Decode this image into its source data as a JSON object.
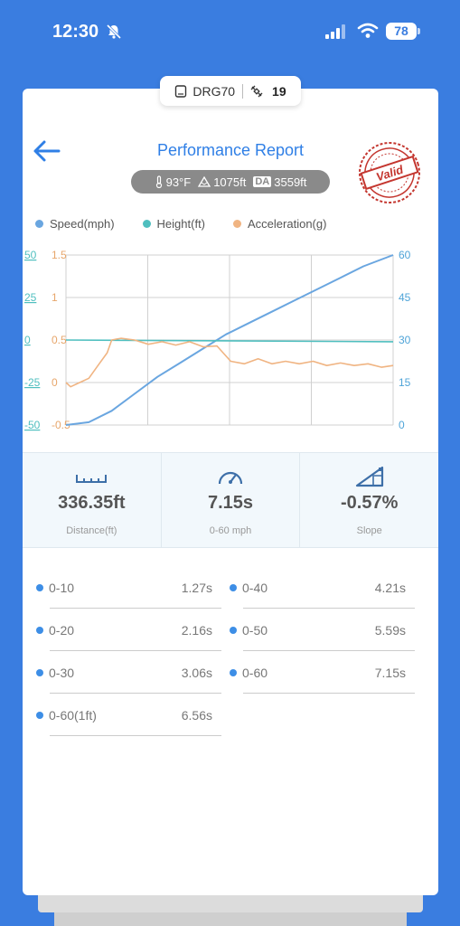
{
  "status_bar": {
    "time": "12:30",
    "battery": "78"
  },
  "device": {
    "name": "DRG70",
    "satellites": "19"
  },
  "report": {
    "title": "Performance Report",
    "temperature": "93°F",
    "altitude": "1075ft",
    "da_label": "DA",
    "density_altitude": "3559ft",
    "stamp_text": "Valid"
  },
  "legend": {
    "speed": "Speed(mph)",
    "height": "Height(ft)",
    "acceleration": "Acceleration(g)"
  },
  "chart_data": {
    "type": "line",
    "series": [
      {
        "name": "Speed(mph)",
        "color": "#6aa6e0",
        "axis": "right",
        "ylim": [
          0,
          60
        ],
        "x": [
          0,
          0.5,
          1.0,
          1.5,
          2.0,
          2.5,
          3.0,
          3.5,
          4.0,
          4.5,
          5.0,
          5.5,
          6.0,
          6.5,
          7.15
        ],
        "values": [
          0,
          1,
          5,
          11,
          17,
          22,
          27,
          32,
          36,
          40,
          44,
          48,
          52,
          56,
          60
        ]
      },
      {
        "name": "Height(ft)",
        "color": "#4fbfbf",
        "axis": "left-outer",
        "ylim": [
          -50,
          50
        ],
        "x": [
          0,
          7.15
        ],
        "values": [
          0,
          -1
        ]
      },
      {
        "name": "Acceleration(g)",
        "color": "#f0b482",
        "axis": "left-inner",
        "ylim": [
          -0.5,
          1.5
        ],
        "x": [
          0,
          0.1,
          0.3,
          0.5,
          0.7,
          0.9,
          1.0,
          1.2,
          1.5,
          1.8,
          2.1,
          2.4,
          2.7,
          3.0,
          3.3,
          3.6,
          3.9,
          4.2,
          4.5,
          4.8,
          5.1,
          5.4,
          5.7,
          6.0,
          6.3,
          6.6,
          6.9,
          7.15
        ],
        "values": [
          0.0,
          -0.05,
          0.0,
          0.05,
          0.2,
          0.35,
          0.5,
          0.52,
          0.5,
          0.45,
          0.48,
          0.44,
          0.48,
          0.42,
          0.43,
          0.25,
          0.22,
          0.28,
          0.22,
          0.25,
          0.22,
          0.25,
          0.2,
          0.23,
          0.2,
          0.22,
          0.18,
          0.2
        ]
      }
    ],
    "axes": {
      "left_outer": {
        "ticks": [
          "50",
          "25",
          "0",
          "-25",
          "-50"
        ],
        "color": "#4fbfbf"
      },
      "left_inner": {
        "ticks": [
          "1.5",
          "1",
          "0.5",
          "0",
          "-0.5"
        ],
        "color": "#e7a66b"
      },
      "right": {
        "ticks": [
          "60",
          "45",
          "30",
          "15",
          "0"
        ],
        "color": "#4fa4d8"
      }
    },
    "grid": true
  },
  "stats": {
    "distance": {
      "value": "336.35ft",
      "label": "Distance(ft)"
    },
    "zero_sixty": {
      "value": "7.15s",
      "label": "0-60 mph"
    },
    "slope": {
      "value": "-0.57%",
      "label": "Slope"
    }
  },
  "splits": [
    {
      "name": "0-10",
      "time": "1.27s"
    },
    {
      "name": "0-40",
      "time": "4.21s"
    },
    {
      "name": "0-20",
      "time": "2.16s"
    },
    {
      "name": "0-50",
      "time": "5.59s"
    },
    {
      "name": "0-30",
      "time": "3.06s"
    },
    {
      "name": "0-60",
      "time": "7.15s"
    },
    {
      "name": "0-60(1ft)",
      "time": "6.56s"
    }
  ],
  "colors": {
    "accent": "#2f7fe6",
    "background": "#3a7de0"
  }
}
